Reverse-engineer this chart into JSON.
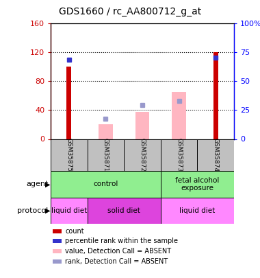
{
  "title": "GDS1660 / rc_AA800712_g_at",
  "samples": [
    "GSM35875",
    "GSM35871",
    "GSM35872",
    "GSM35873",
    "GSM35874"
  ],
  "count_values": [
    100,
    0,
    0,
    0,
    120
  ],
  "pink_bar_values": [
    0,
    20,
    38,
    65,
    0
  ],
  "blue_dot_left_scale": [
    110,
    null,
    null,
    null,
    113
  ],
  "light_blue_dot_left_scale": [
    null,
    28,
    47,
    53,
    null
  ],
  "ylim_left": [
    0,
    160
  ],
  "ylim_right": [
    0,
    100
  ],
  "yticks_left": [
    0,
    40,
    80,
    120,
    160
  ],
  "yticks_right": [
    0,
    25,
    50,
    75,
    100
  ],
  "ytick_labels_right": [
    "0",
    "25",
    "50",
    "75",
    "100%"
  ],
  "agent_row": [
    {
      "label": "control",
      "span": [
        0,
        3
      ],
      "color": "#90EE90"
    },
    {
      "label": "fetal alcohol\nexposure",
      "span": [
        3,
        5
      ],
      "color": "#90EE90"
    }
  ],
  "protocol_row": [
    {
      "label": "liquid diet",
      "span": [
        0,
        1
      ],
      "color": "#FF88FF"
    },
    {
      "label": "solid diet",
      "span": [
        1,
        3
      ],
      "color": "#DD44DD"
    },
    {
      "label": "liquid diet",
      "span": [
        3,
        5
      ],
      "color": "#FF88FF"
    }
  ],
  "count_color": "#CC0000",
  "pink_bar_color": "#FFB6C1",
  "blue_dot_color": "#3333CC",
  "light_blue_dot_color": "#9999CC",
  "sample_label_bg": "#C0C0C0",
  "dotgrid_color": "black"
}
